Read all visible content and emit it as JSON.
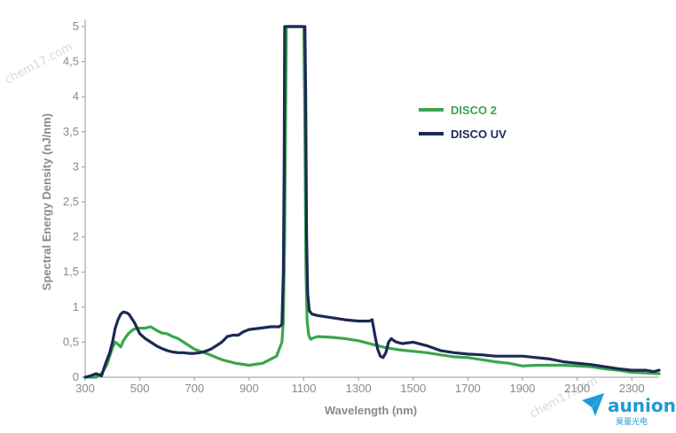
{
  "chart_data": {
    "type": "line",
    "title": "",
    "xlabel": "Wavelength (nm)",
    "ylabel": "Spectral Energy Density (nJ/nm)",
    "xlim": [
      300,
      2400
    ],
    "ylim": [
      0,
      5
    ],
    "xticks": [
      "300",
      "500",
      "700",
      "900",
      "1100",
      "1300",
      "1500",
      "1700",
      "1900",
      "2100",
      "2300"
    ],
    "yticks": [
      "0",
      "0,5",
      "1",
      "1,5",
      "2",
      "2,5",
      "3",
      "3,5",
      "4",
      "4,5",
      "5"
    ],
    "grid": false,
    "legend_position": "top-right",
    "series": [
      {
        "name": "DISCO 2",
        "color": "#3aa64c",
        "x": [
          300,
          340,
          360,
          380,
          390,
          400,
          410,
          420,
          430,
          440,
          450,
          460,
          470,
          480,
          500,
          520,
          540,
          560,
          580,
          600,
          620,
          640,
          660,
          680,
          700,
          720,
          750,
          800,
          850,
          900,
          950,
          1000,
          1020,
          1025,
          1030,
          1033,
          1036,
          1040,
          1100,
          1104,
          1108,
          1112,
          1118,
          1125,
          1135,
          1150,
          1200,
          1250,
          1300,
          1350,
          1400,
          1450,
          1500,
          1550,
          1600,
          1650,
          1700,
          1750,
          1800,
          1850,
          1900,
          1950,
          2000,
          2050,
          2100,
          2150,
          2200,
          2250,
          2300,
          2350,
          2400
        ],
        "values": [
          0,
          0,
          0.05,
          0.18,
          0.3,
          0.42,
          0.5,
          0.47,
          0.43,
          0.52,
          0.58,
          0.63,
          0.66,
          0.69,
          0.7,
          0.7,
          0.72,
          0.67,
          0.63,
          0.62,
          0.58,
          0.55,
          0.5,
          0.45,
          0.4,
          0.37,
          0.33,
          0.25,
          0.2,
          0.17,
          0.2,
          0.3,
          0.5,
          0.8,
          2.0,
          3.5,
          5.0,
          5.0,
          5.0,
          3.5,
          1.5,
          0.8,
          0.6,
          0.54,
          0.56,
          0.58,
          0.57,
          0.55,
          0.52,
          0.47,
          0.42,
          0.39,
          0.37,
          0.35,
          0.32,
          0.29,
          0.28,
          0.25,
          0.22,
          0.2,
          0.16,
          0.17,
          0.17,
          0.17,
          0.16,
          0.15,
          0.12,
          0.1,
          0.07,
          0.06,
          0.05
        ]
      },
      {
        "name": "DISCO UV",
        "color": "#1b2a55",
        "x": [
          300,
          320,
          340,
          360,
          375,
          390,
          400,
          410,
          420,
          430,
          440,
          450,
          460,
          470,
          480,
          500,
          520,
          540,
          560,
          580,
          600,
          620,
          640,
          660,
          680,
          700,
          720,
          740,
          760,
          780,
          800,
          820,
          840,
          860,
          880,
          900,
          940,
          980,
          1010,
          1020,
          1025,
          1028,
          1030,
          1033,
          1036,
          1040,
          1100,
          1104,
          1107,
          1110,
          1114,
          1120,
          1130,
          1150,
          1200,
          1250,
          1300,
          1340,
          1350,
          1360,
          1370,
          1380,
          1390,
          1400,
          1410,
          1420,
          1430,
          1440,
          1460,
          1500,
          1550,
          1600,
          1650,
          1700,
          1750,
          1800,
          1850,
          1900,
          1950,
          2000,
          2050,
          2100,
          2150,
          2200,
          2250,
          2300,
          2350,
          2380,
          2400
        ],
        "values": [
          0,
          0.02,
          0.05,
          0.02,
          0.2,
          0.35,
          0.5,
          0.7,
          0.82,
          0.9,
          0.93,
          0.92,
          0.9,
          0.84,
          0.78,
          0.62,
          0.55,
          0.5,
          0.45,
          0.41,
          0.38,
          0.36,
          0.35,
          0.35,
          0.34,
          0.34,
          0.35,
          0.37,
          0.4,
          0.45,
          0.5,
          0.58,
          0.6,
          0.6,
          0.65,
          0.68,
          0.7,
          0.72,
          0.72,
          0.75,
          1.5,
          3.0,
          5.0,
          5.0,
          5.0,
          5.0,
          5.0,
          5.0,
          4.0,
          2.0,
          1.2,
          0.95,
          0.9,
          0.88,
          0.85,
          0.82,
          0.8,
          0.8,
          0.82,
          0.6,
          0.4,
          0.3,
          0.28,
          0.35,
          0.5,
          0.55,
          0.52,
          0.5,
          0.48,
          0.5,
          0.45,
          0.38,
          0.35,
          0.33,
          0.32,
          0.3,
          0.3,
          0.3,
          0.28,
          0.26,
          0.22,
          0.2,
          0.18,
          0.15,
          0.12,
          0.1,
          0.1,
          0.08,
          0.1
        ]
      }
    ]
  },
  "watermark": {
    "top_left": "chem17.com",
    "bottom_right": "chem17.com"
  },
  "brand": {
    "name": "aunion",
    "subtitle": "昊量光电",
    "color": "#1f9ad6"
  }
}
